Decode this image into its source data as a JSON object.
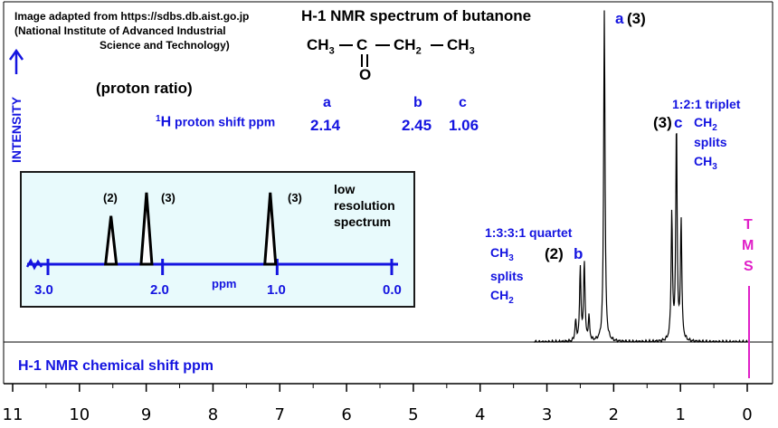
{
  "header": {
    "credit_line1": "Image adapted from https://sdbs.db.aist.go.jp",
    "credit_line2": "(National Institute of Advanced Industrial",
    "credit_line3": "Science and Technology)",
    "title": "H-1 NMR spectrum of butanone",
    "intensity_label": "INTENSITY",
    "proton_ratio_label": "(proton ratio)"
  },
  "structure": {
    "ch3_left": "CH",
    "ch3_left_sub": "3",
    "carbon": "C",
    "ch2": "CH",
    "ch2_sub": "2",
    "ch3_right": "CH",
    "ch3_right_sub": "3",
    "oxygen": "O"
  },
  "shift_table": {
    "label_sup": "1",
    "label_h": "H",
    "label_rest": "proton shift  ppm",
    "letters": [
      "a",
      "b",
      "c"
    ],
    "values": [
      "2.14",
      "2.45",
      "1.06"
    ]
  },
  "peak_labels": {
    "a_letter": "a",
    "a_ratio": "(3)",
    "b_ratio": "(2)",
    "b_letter": "b",
    "c_ratio": "(3)",
    "c_letter": "c",
    "triplet_title": "1:2:1 triplet",
    "triplet_l1": "CH",
    "triplet_l1_sub": "2",
    "triplet_l2": "splits",
    "triplet_l3": "CH",
    "triplet_l3_sub": "3",
    "quartet_title": "1:3:3:1 quartet",
    "quartet_l1": "CH",
    "quartet_l1_sub": "3",
    "quartet_l2": "splits",
    "quartet_l3": "CH",
    "quartet_l3_sub": "2",
    "tms_letters": [
      "T",
      "M",
      "S"
    ]
  },
  "inset": {
    "peak_ratios": [
      "(2)",
      "(3)",
      "(3)"
    ],
    "note_lines": [
      "low",
      "resolution",
      "spectrum"
    ],
    "tick_labels": [
      "3.0",
      "2.0",
      "1.0",
      "0.0"
    ],
    "axis_unit": "ppm"
  },
  "xaxis_title": "H-1 NMR chemical shift  ppm",
  "colors": {
    "label_blue": "#1414e0",
    "tms_magenta": "#e020c8",
    "inset_bg": "#e8fafc",
    "spectrum_black": "#000000"
  },
  "chart_data": [
    {
      "type": "line",
      "xlim": [
        11,
        0
      ],
      "xlabel": "H-1 NMR chemical shift  ppm",
      "ylabel": "INTENSITY",
      "x_ticks": [
        11,
        10,
        9,
        8,
        7,
        6,
        5,
        4,
        3,
        2,
        1,
        0
      ],
      "tick_labels": [
        "11",
        "10",
        "9",
        "8",
        "7",
        "6",
        "5",
        "4",
        "3",
        "2",
        "1",
        "0"
      ],
      "peaks": [
        {
          "group": "a",
          "x": 2.14,
          "height": 1.0,
          "ratio": 3,
          "multiplicity": "singlet"
        },
        {
          "group": "b",
          "x": 2.57,
          "height": 0.06,
          "multiplicity": "quartet"
        },
        {
          "group": "b",
          "x": 2.5,
          "height": 0.22
        },
        {
          "group": "b",
          "x": 2.44,
          "height": 0.24
        },
        {
          "group": "b",
          "x": 2.37,
          "height": 0.07
        },
        {
          "group": "c",
          "x": 1.13,
          "height": 0.38,
          "multiplicity": "triplet"
        },
        {
          "group": "c",
          "x": 1.06,
          "height": 0.65
        },
        {
          "group": "c",
          "x": 0.99,
          "height": 0.36
        }
      ],
      "reference": {
        "x": 0.0,
        "label": "TMS"
      }
    },
    {
      "type": "line",
      "title": "low resolution spectrum",
      "xlim": [
        3.0,
        0.0
      ],
      "xlabel": "ppm",
      "tick_values": [
        3.0,
        2.0,
        1.0,
        0.0
      ],
      "peaks": [
        {
          "x": 2.45,
          "ratio": 2,
          "height": 0.62
        },
        {
          "x": 2.14,
          "ratio": 3,
          "height": 0.92
        },
        {
          "x": 1.06,
          "ratio": 3,
          "height": 0.92
        }
      ]
    }
  ]
}
